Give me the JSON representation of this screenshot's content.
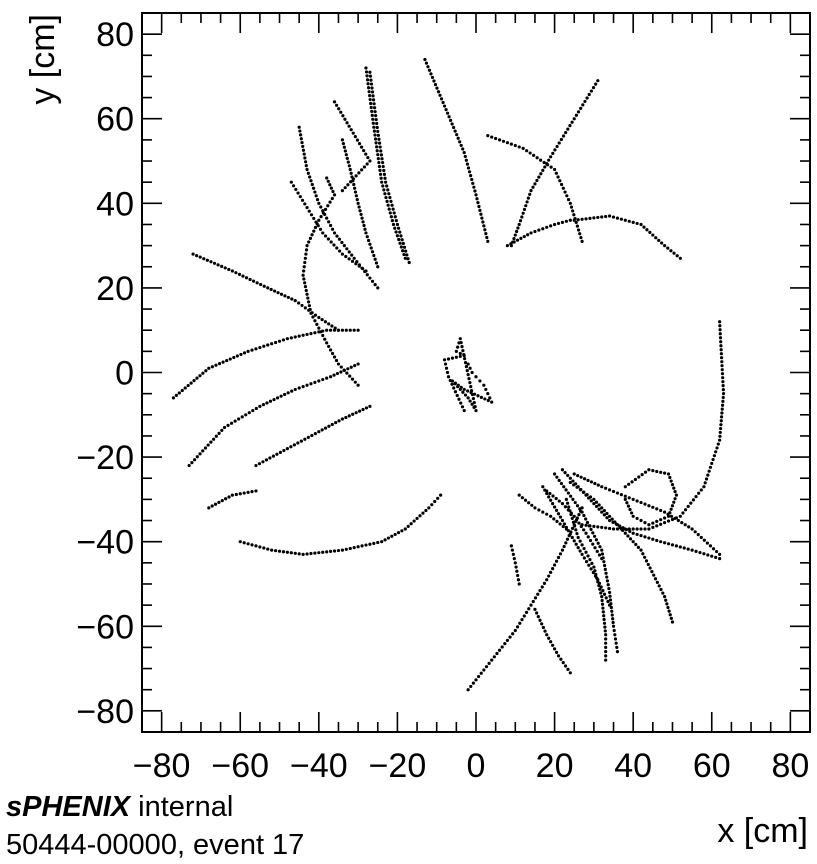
{
  "chart_data": {
    "type": "scatter",
    "xlabel": "x [cm]",
    "ylabel": "y [cm]",
    "xlim": [
      -85,
      85
    ],
    "ylim": [
      -85,
      85
    ],
    "x_ticks": [
      -80,
      -60,
      -40,
      -20,
      0,
      20,
      40,
      60,
      80
    ],
    "y_ticks": [
      -80,
      -60,
      -40,
      -20,
      0,
      20,
      40,
      60,
      80
    ],
    "x_tick_labels": [
      "−80",
      "−60",
      "−40",
      "−20",
      "0",
      "20",
      "40",
      "60",
      "80"
    ],
    "y_tick_labels": [
      "−80",
      "−60",
      "−40",
      "−20",
      "0",
      "20",
      "40",
      "60",
      "80"
    ],
    "grid": false,
    "legend": "none",
    "marker_color": "#000000",
    "series": [
      {
        "points": [
          [
            -28,
            72
          ],
          [
            -26,
            58
          ],
          [
            -24,
            45
          ],
          [
            -21,
            35
          ],
          [
            -18,
            27
          ]
        ]
      },
      {
        "points": [
          [
            -27,
            71
          ],
          [
            -25,
            57
          ],
          [
            -23,
            45
          ],
          [
            -20,
            35
          ],
          [
            -17,
            26
          ]
        ]
      },
      {
        "points": [
          [
            -45,
            58
          ],
          [
            -43,
            48
          ],
          [
            -40,
            40
          ],
          [
            -36,
            33
          ],
          [
            -31,
            27
          ],
          [
            -25,
            20
          ]
        ]
      },
      {
        "points": [
          [
            -47,
            45
          ],
          [
            -43,
            39
          ],
          [
            -39,
            33
          ],
          [
            -34,
            28
          ],
          [
            -28,
            24
          ]
        ]
      },
      {
        "points": [
          [
            -34,
            55
          ],
          [
            -32,
            48
          ],
          [
            -30,
            40
          ],
          [
            -28,
            33
          ],
          [
            -25,
            25
          ]
        ]
      },
      {
        "points": [
          [
            -13,
            74
          ],
          [
            -8,
            63
          ],
          [
            -3,
            52
          ],
          [
            0,
            42
          ],
          [
            3,
            31
          ]
        ]
      },
      {
        "points": [
          [
            31,
            69
          ],
          [
            25,
            60
          ],
          [
            19,
            51
          ],
          [
            14,
            43
          ],
          [
            11,
            35
          ],
          [
            9,
            30
          ]
        ]
      },
      {
        "points": [
          [
            8,
            30
          ],
          [
            14,
            33
          ],
          [
            20,
            35
          ],
          [
            24,
            36
          ]
        ]
      },
      {
        "points": [
          [
            3,
            56
          ],
          [
            12,
            53
          ],
          [
            20,
            48
          ],
          [
            24,
            40
          ],
          [
            27,
            31
          ]
        ]
      },
      {
        "points": [
          [
            25,
            36
          ],
          [
            34,
            37
          ],
          [
            42,
            35
          ],
          [
            48,
            30
          ],
          [
            52,
            27
          ]
        ]
      },
      {
        "points": [
          [
            -72,
            28
          ],
          [
            -62,
            24
          ],
          [
            -53,
            20
          ],
          [
            -46,
            17
          ],
          [
            -40,
            13
          ],
          [
            -35,
            10
          ]
        ]
      },
      {
        "points": [
          [
            -38,
            46
          ],
          [
            -36,
            42
          ],
          [
            -40,
            36
          ],
          [
            -43,
            30
          ],
          [
            -44,
            23
          ],
          [
            -42,
            14
          ],
          [
            -38,
            7
          ],
          [
            -35,
            2
          ],
          [
            -30,
            -3
          ]
        ]
      },
      {
        "points": [
          [
            -77,
            -6
          ],
          [
            -68,
            1
          ],
          [
            -58,
            5
          ],
          [
            -48,
            8
          ],
          [
            -38,
            10
          ],
          [
            -30,
            10
          ]
        ]
      },
      {
        "points": [
          [
            -73,
            -22
          ],
          [
            -64,
            -13
          ],
          [
            -55,
            -8
          ],
          [
            -46,
            -4
          ],
          [
            -37,
            -1
          ],
          [
            -30,
            2
          ]
        ]
      },
      {
        "points": [
          [
            -56,
            -22
          ],
          [
            -48,
            -18
          ],
          [
            -40,
            -14
          ],
          [
            -34,
            -11
          ],
          [
            -27,
            -8
          ]
        ]
      },
      {
        "points": [
          [
            -68,
            -32
          ],
          [
            -62,
            -29
          ],
          [
            -56,
            -28
          ]
        ]
      },
      {
        "points": [
          [
            -60,
            -40
          ],
          [
            -52,
            -42
          ],
          [
            -44,
            -43
          ],
          [
            -34,
            -42
          ],
          [
            -24,
            -40
          ],
          [
            -18,
            -37
          ],
          [
            -12,
            -32
          ],
          [
            -9,
            -29
          ]
        ]
      },
      {
        "points": [
          [
            -2,
            -75
          ],
          [
            4,
            -68
          ],
          [
            10,
            -61
          ],
          [
            14,
            -55
          ],
          [
            18,
            -49
          ],
          [
            22,
            -42
          ],
          [
            25,
            -36
          ],
          [
            27,
            -32
          ]
        ]
      },
      {
        "points": [
          [
            38,
            -27
          ],
          [
            44,
            -23
          ],
          [
            49,
            -24
          ],
          [
            51,
            -29
          ],
          [
            49,
            -34
          ],
          [
            44,
            -36
          ],
          [
            40,
            -34
          ],
          [
            38,
            -30
          ]
        ]
      },
      {
        "points": [
          [
            62,
            12
          ],
          [
            63,
            -5
          ],
          [
            62,
            -16
          ],
          [
            58,
            -27
          ],
          [
            52,
            -34
          ],
          [
            44,
            -37
          ],
          [
            35,
            -37
          ],
          [
            27,
            -36
          ]
        ]
      },
      {
        "points": [
          [
            22,
            -23
          ],
          [
            28,
            -29
          ],
          [
            34,
            -35
          ],
          [
            40,
            -38
          ],
          [
            47,
            -40
          ],
          [
            55,
            -42
          ],
          [
            62,
            -44
          ]
        ]
      },
      {
        "points": [
          [
            25,
            -24
          ],
          [
            32,
            -27
          ],
          [
            40,
            -30
          ],
          [
            48,
            -33
          ],
          [
            55,
            -37
          ],
          [
            62,
            -43
          ]
        ]
      },
      {
        "points": [
          [
            24,
            -26
          ],
          [
            30,
            -30
          ],
          [
            36,
            -36
          ],
          [
            42,
            -42
          ],
          [
            48,
            -53
          ],
          [
            50,
            -59
          ]
        ]
      },
      {
        "points": [
          [
            17,
            -27
          ],
          [
            22,
            -35
          ],
          [
            27,
            -43
          ],
          [
            31,
            -49
          ],
          [
            34,
            -55
          ]
        ]
      },
      {
        "points": [
          [
            23,
            -30
          ],
          [
            26,
            -39
          ],
          [
            30,
            -46
          ],
          [
            32,
            -53
          ],
          [
            33,
            -62
          ],
          [
            33,
            -68
          ]
        ]
      },
      {
        "points": [
          [
            20,
            -24
          ],
          [
            27,
            -33
          ],
          [
            32,
            -42
          ],
          [
            34,
            -52
          ],
          [
            35,
            -60
          ],
          [
            36,
            -66
          ]
        ]
      },
      {
        "points": [
          [
            11,
            -29
          ],
          [
            15,
            -32
          ],
          [
            19,
            -34
          ],
          [
            23,
            -37
          ]
        ]
      },
      {
        "points": [
          [
            18,
            -28
          ],
          [
            22,
            -31
          ],
          [
            25,
            -34
          ],
          [
            28,
            -38
          ],
          [
            32,
            -44
          ]
        ]
      },
      {
        "points": [
          [
            15,
            -56
          ],
          [
            18,
            -62
          ],
          [
            21,
            -67
          ],
          [
            24,
            -71
          ]
        ]
      },
      {
        "points": [
          [
            9,
            -41
          ],
          [
            10,
            -45
          ],
          [
            11,
            -50
          ]
        ]
      },
      {
        "points": [
          [
            -2,
            2
          ],
          [
            -1,
            0
          ],
          [
            0,
            -1
          ],
          [
            1,
            -2
          ],
          [
            2,
            -3
          ],
          [
            3,
            -5
          ],
          [
            4,
            -7
          ],
          [
            -3,
            -4
          ],
          [
            -6,
            -2
          ],
          [
            -2,
            -6
          ],
          [
            0,
            -9
          ],
          [
            -4,
            8
          ],
          [
            -5,
            5
          ],
          [
            -3,
            4
          ],
          [
            -8,
            3
          ],
          [
            -7,
            -1
          ],
          [
            -3,
            -9
          ]
        ]
      },
      {
        "points": [
          [
            -36,
            64
          ],
          [
            -27,
            50
          ],
          [
            -34,
            43
          ]
        ]
      }
    ]
  },
  "footer": {
    "collab": "sPHENIX",
    "collab_suffix": " internal",
    "run_info": "50444-00000, event 17"
  }
}
